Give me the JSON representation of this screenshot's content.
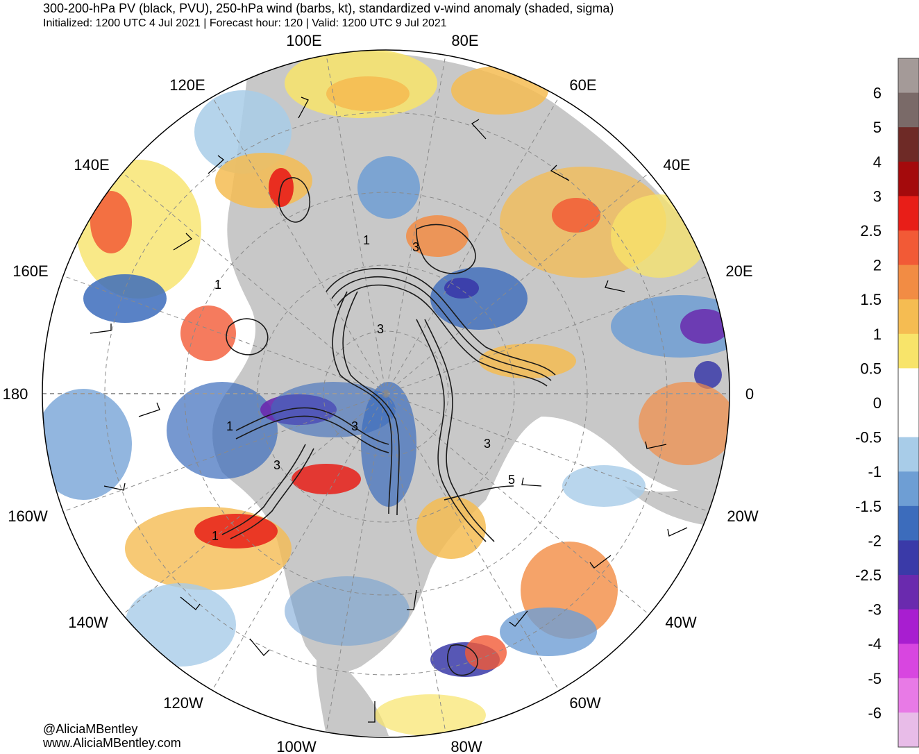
{
  "header": {
    "title": "300-200-hPa PV (black, PVU), 250-hPa wind (barbs, kt), standardized v-wind anomaly (shaded, sigma)",
    "subtitle": "Initialized: 1200 UTC 4 Jul 2021 | Forecast hour: 120 | Valid: 1200 UTC 9 Jul 2021"
  },
  "footer": {
    "handle": "@AliciaMBentley",
    "website": "www.AliciaMBentley.com"
  },
  "longitude_labels": [
    "100E",
    "80E",
    "120E",
    "60E",
    "140E",
    "40E",
    "160E",
    "20E",
    "180",
    "0",
    "160W",
    "20W",
    "140W",
    "40W",
    "120W",
    "60W",
    "100W",
    "80W"
  ],
  "pv_contour_labels": [
    "1",
    "3",
    "3",
    "1",
    "3",
    "1",
    "3",
    "3",
    "5",
    "1"
  ],
  "colorbar": {
    "labels": [
      "6",
      "5",
      "4",
      "3",
      "2.5",
      "2",
      "1.5",
      "1",
      "0.5",
      "0",
      "-0.5",
      "-1",
      "-1.5",
      "-2",
      "-2.5",
      "-3",
      "-4",
      "-5",
      "-6"
    ],
    "colors": [
      "#a49a98",
      "#7a6a68",
      "#6e2a26",
      "#a40a0c",
      "#e81e18",
      "#f25a36",
      "#f28c44",
      "#f5bc52",
      "#f8e46a",
      "#ffffff",
      "#ffffff",
      "#a8cce8",
      "#6e9ed4",
      "#3c6cbc",
      "#3a3aa8",
      "#6a2aae",
      "#a81ed0",
      "#d846e0",
      "#e87ae6",
      "#e8bce8"
    ]
  },
  "map_colors": {
    "land": "#c8c8c8",
    "ocean": "#ffffff",
    "pv_contour": "#1a1a1a",
    "barb": "#000000"
  }
}
